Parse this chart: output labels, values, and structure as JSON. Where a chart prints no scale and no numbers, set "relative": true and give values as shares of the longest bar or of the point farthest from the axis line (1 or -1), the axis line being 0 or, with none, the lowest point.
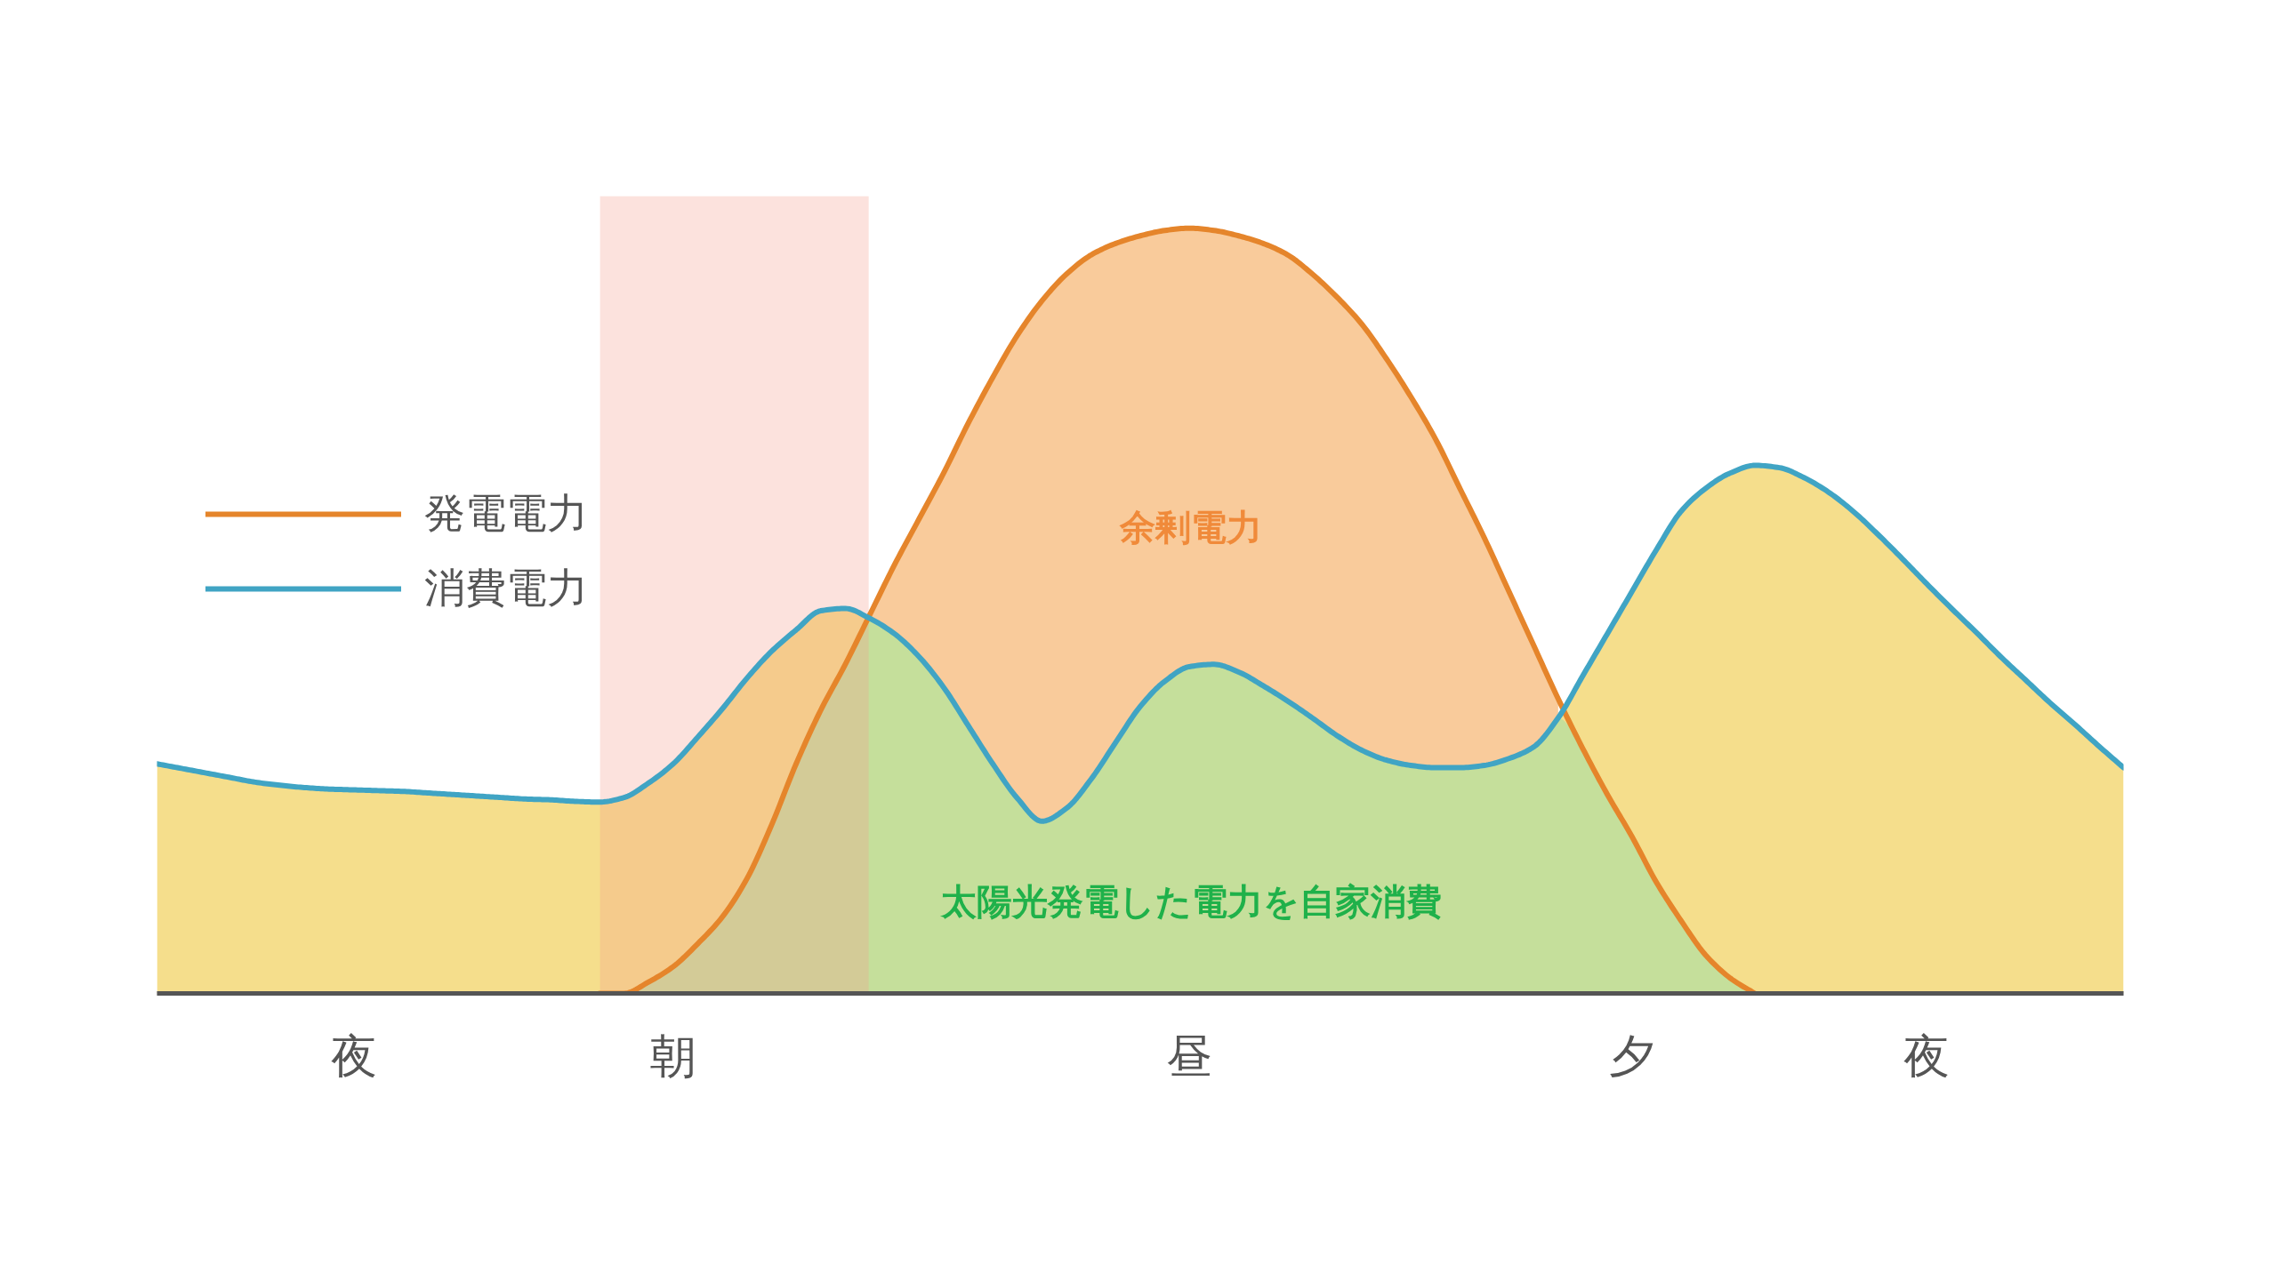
{
  "chart_data": {
    "type": "area",
    "relative": true,
    "categories": [
      null,
      null,
      null,
      null,
      null,
      null,
      null,
      null,
      "夜",
      null,
      null,
      null,
      null,
      null,
      null,
      null,
      null,
      null,
      null,
      null,
      null,
      "朝",
      null,
      null,
      null,
      null,
      null,
      null,
      null,
      null,
      null,
      null,
      null,
      null,
      null,
      null,
      null,
      null,
      null,
      null,
      null,
      null,
      "昼",
      null,
      null,
      null,
      null,
      null,
      null,
      null,
      null,
      null,
      null,
      null,
      null,
      null,
      null,
      null,
      null,
      null,
      "夕",
      null,
      null,
      null,
      null,
      null,
      null,
      null,
      null,
      null,
      null,
      null,
      "夜",
      null,
      null,
      null,
      null,
      null,
      null,
      null,
      null
    ],
    "series": [
      {
        "color": "#f9cb9b",
        "values": [
          null,
          null,
          null,
          null,
          null,
          null,
          null,
          null,
          null,
          null,
          null,
          null,
          null,
          null,
          null,
          null,
          null,
          null,
          null,
          null,
          null,
          null,
          null,
          null,
          null,
          null,
          null,
          null,
          null,
          0.495,
          0.56,
          0.62,
          0.68,
          0.745,
          0.805,
          0.86,
          0.905,
          0.94,
          0.965,
          0.98,
          0.99,
          0.997,
          1.0,
          0.997,
          0.99,
          0.98,
          0.965,
          0.94,
          0.91,
          0.875,
          0.83,
          0.78,
          0.725,
          0.66,
          0.595,
          0.525,
          0.455,
          0.385,
          null,
          null,
          null,
          null,
          null,
          null,
          null,
          null,
          null,
          null,
          null,
          null,
          null,
          null,
          null,
          null,
          null,
          null,
          null,
          null,
          null,
          null,
          null
        ]
      },
      {
        "color": "#f5de8c",
        "values": [
          0.3,
          0.294,
          0.288,
          0.282,
          0.276,
          0.272,
          0.269,
          0.267,
          0.266,
          0.265,
          0.264,
          0.262,
          0.26,
          0.258,
          0.256,
          0.254,
          0.253,
          0.251,
          0.25,
          0.256,
          0.275,
          0.3,
          0.335,
          0.372,
          0.412,
          0.447,
          0.475,
          0.5,
          0.503,
          0.49,
          null,
          null,
          null,
          null,
          null,
          null,
          null,
          null,
          null,
          null,
          null,
          null,
          null,
          null,
          null,
          null,
          null,
          null,
          null,
          null,
          null,
          null,
          null,
          null,
          null,
          null,
          null,
          0.36,
          0.415,
          0.47,
          0.525,
          0.58,
          0.63,
          0.66,
          0.68,
          0.69,
          0.687,
          0.674,
          0.655,
          0.63,
          0.6,
          0.568,
          0.535,
          0.503,
          0.472,
          0.44,
          0.41,
          0.38,
          0.352,
          0.323,
          0.295
        ]
      },
      {
        "color": "#c5df9b",
        "values": [
          0,
          0,
          0,
          0,
          0,
          0,
          0,
          0,
          0,
          0,
          0,
          0,
          0,
          0,
          0,
          0,
          0,
          0,
          0,
          0,
          0.015,
          0.035,
          0.065,
          0.1,
          0.15,
          0.22,
          0.3,
          0.37,
          0.43,
          0.49,
          0.47,
          0.44,
          0.4,
          0.35,
          0.3,
          0.255,
          0.225,
          0.242,
          0.28,
          0.328,
          0.375,
          0.408,
          0.427,
          0.43,
          0.42,
          0.402,
          0.382,
          0.36,
          0.337,
          0.318,
          0.305,
          0.298,
          0.295,
          0.295,
          0.298,
          0.307,
          0.322,
          0.36,
          0.32,
          0.26,
          0.205,
          0.145,
          0.095,
          0.05,
          0.02,
          0,
          0,
          0,
          0,
          0,
          0,
          0,
          0,
          0,
          0,
          0,
          0,
          0,
          0,
          0,
          0
        ]
      },
      {
        "name": "発電電力",
        "type": "line",
        "color": "#e5852b",
        "values": [
          null,
          null,
          null,
          null,
          null,
          null,
          null,
          null,
          null,
          null,
          null,
          null,
          null,
          null,
          null,
          null,
          null,
          null,
          0,
          0,
          0.015,
          0.035,
          0.065,
          0.1,
          0.15,
          0.22,
          0.3,
          0.37,
          0.43,
          0.495,
          0.56,
          0.62,
          0.68,
          0.745,
          0.805,
          0.86,
          0.905,
          0.94,
          0.965,
          0.98,
          0.99,
          0.997,
          1.0,
          0.997,
          0.99,
          0.98,
          0.965,
          0.94,
          0.91,
          0.875,
          0.83,
          0.78,
          0.725,
          0.66,
          0.595,
          0.525,
          0.455,
          0.385,
          0.32,
          0.26,
          0.205,
          0.145,
          0.095,
          0.05,
          0.02,
          0,
          null,
          null,
          null,
          null,
          null,
          null,
          null,
          null,
          null,
          null,
          null,
          null,
          null,
          null,
          null
        ]
      },
      {
        "name": "消費電力",
        "type": "line",
        "color": "#40a4c4",
        "values": [
          0.3,
          0.294,
          0.288,
          0.282,
          0.276,
          0.272,
          0.269,
          0.267,
          0.266,
          0.265,
          0.264,
          0.262,
          0.26,
          0.258,
          0.256,
          0.254,
          0.253,
          0.251,
          0.25,
          0.256,
          0.275,
          0.3,
          0.335,
          0.372,
          0.412,
          0.447,
          0.475,
          0.5,
          0.503,
          0.49,
          0.47,
          0.44,
          0.4,
          0.35,
          0.3,
          0.255,
          0.225,
          0.242,
          0.28,
          0.328,
          0.375,
          0.408,
          0.427,
          0.43,
          0.42,
          0.402,
          0.382,
          0.36,
          0.337,
          0.318,
          0.305,
          0.298,
          0.295,
          0.295,
          0.298,
          0.307,
          0.322,
          0.36,
          0.415,
          0.47,
          0.525,
          0.58,
          0.63,
          0.66,
          0.68,
          0.69,
          0.687,
          0.674,
          0.655,
          0.63,
          0.6,
          0.568,
          0.535,
          0.503,
          0.472,
          0.44,
          0.41,
          0.38,
          0.352,
          0.323,
          0.295
        ]
      }
    ],
    "annotations": [
      "余剰電力",
      "太陽光発電した電力を自家消費"
    ],
    "legend": "left"
  }
}
